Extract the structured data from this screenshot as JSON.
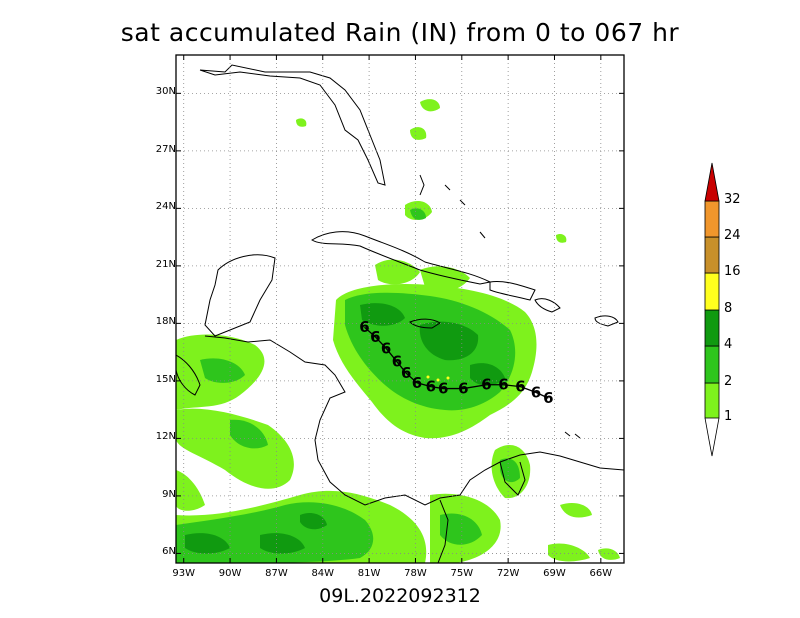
{
  "title": "sat accumulated Rain (IN) from 0 to 067 hr",
  "footer": "09L.2022092312",
  "map": {
    "lat_ticks": [
      "30N",
      "27N",
      "24N",
      "21N",
      "18N",
      "15N",
      "12N",
      "9N",
      "6N"
    ],
    "lon_ticks": [
      "93W",
      "90W",
      "87W",
      "84W",
      "81W",
      "78W",
      "75W",
      "72W",
      "69W",
      "66W"
    ],
    "gridlines": true,
    "storm_symbol": "6",
    "storm_track": [
      {
        "lon": -81.3,
        "lat": 17.8
      },
      {
        "lon": -80.6,
        "lat": 17.3
      },
      {
        "lon": -79.9,
        "lat": 16.7
      },
      {
        "lon": -79.2,
        "lat": 16.0
      },
      {
        "lon": -78.6,
        "lat": 15.4
      },
      {
        "lon": -77.9,
        "lat": 14.9
      },
      {
        "lon": -77.0,
        "lat": 14.7
      },
      {
        "lon": -76.2,
        "lat": 14.6
      },
      {
        "lon": -74.9,
        "lat": 14.6
      },
      {
        "lon": -73.4,
        "lat": 14.8
      },
      {
        "lon": -72.3,
        "lat": 14.8
      },
      {
        "lon": -71.2,
        "lat": 14.7
      },
      {
        "lon": -70.2,
        "lat": 14.4
      },
      {
        "lon": -69.4,
        "lat": 14.1
      }
    ]
  },
  "colorbar": {
    "labels": [
      "1",
      "2",
      "4",
      "8",
      "16",
      "24",
      "32"
    ],
    "colors": [
      "#7ef21d",
      "#2ec51c",
      "#109a10",
      "#ffff1e",
      "#c8902a",
      "#f0962c",
      "#c80000"
    ]
  },
  "rain_colors": {
    "light": "#7ef21d",
    "moderate": "#2ec51c",
    "heavy": "#109a10"
  }
}
